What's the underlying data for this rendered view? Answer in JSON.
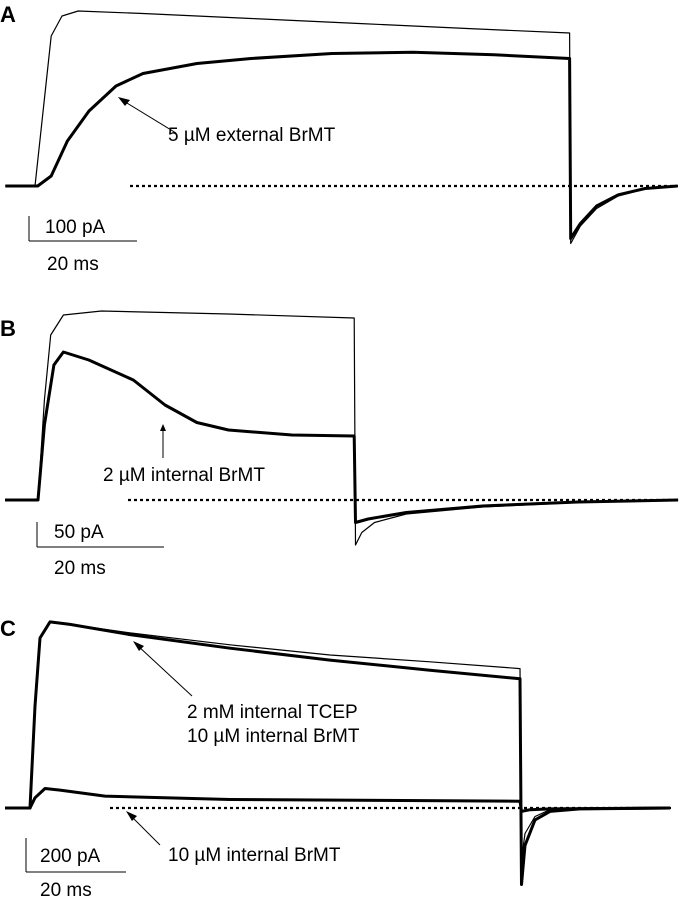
{
  "chart_data": [
    {
      "type": "line",
      "panel_label": "A",
      "x_unit": "ms",
      "y_unit": "pA",
      "scale_bar": {
        "y_label": "100 pA",
        "y_value": 100,
        "x_label": "20 ms",
        "x_value": 20
      },
      "annotations": [
        {
          "text": "5 µM external BrMT",
          "points_to": "thick"
        }
      ],
      "baseline": "dotted zero-current line",
      "series": [
        {
          "style": "thin",
          "points": [
            [
              -5.5,
              0
            ],
            [
              0,
              0
            ],
            [
              2,
              400
            ],
            [
              3,
              600
            ],
            [
              5,
              680
            ],
            [
              8,
              700
            ],
            [
              20,
              690
            ],
            [
              40,
              670
            ],
            [
              60,
              650
            ],
            [
              80,
              630
            ],
            [
              99,
              612
            ],
            [
              99.2,
              -230
            ],
            [
              101,
              -160
            ],
            [
              104,
              -90
            ],
            [
              108,
              -40
            ],
            [
              113,
              -12
            ],
            [
              119,
              0
            ]
          ]
        },
        {
          "style": "thick",
          "points": [
            [
              -5.5,
              0
            ],
            [
              0.5,
              0
            ],
            [
              3,
              40
            ],
            [
              6,
              180
            ],
            [
              10,
              300
            ],
            [
              15,
              400
            ],
            [
              20,
              450
            ],
            [
              30,
              490
            ],
            [
              40,
              510
            ],
            [
              55,
              530
            ],
            [
              70,
              535
            ],
            [
              85,
              525
            ],
            [
              99,
              510
            ],
            [
              99.2,
              -210
            ],
            [
              101,
              -150
            ],
            [
              104,
              -80
            ],
            [
              108,
              -35
            ],
            [
              113,
              -10
            ],
            [
              119,
              0
            ]
          ]
        }
      ]
    },
    {
      "type": "line",
      "panel_label": "B",
      "x_unit": "ms",
      "y_unit": "pA",
      "scale_bar": {
        "y_label": "50 pA",
        "y_value": 50,
        "x_label": "20 ms",
        "x_value": 20
      },
      "annotations": [
        {
          "text": "2 µM internal BrMT",
          "points_to": "thick"
        }
      ],
      "baseline": "dotted zero-current line",
      "series": [
        {
          "style": "thin",
          "points": [
            [
              -5.2,
              0
            ],
            [
              0,
              0
            ],
            [
              1,
              200
            ],
            [
              2,
              330
            ],
            [
              4,
              370
            ],
            [
              10,
              378
            ],
            [
              30,
              372
            ],
            [
              49.8,
              364
            ],
            [
              50,
              -90
            ],
            [
              51,
              -65
            ],
            [
              53,
              -45
            ],
            [
              58,
              -28
            ],
            [
              70,
              -14
            ],
            [
              85,
              -5
            ],
            [
              100.8,
              0
            ]
          ]
        },
        {
          "style": "thick",
          "points": [
            [
              -5.2,
              0
            ],
            [
              0,
              0
            ],
            [
              1,
              150
            ],
            [
              2.5,
              270
            ],
            [
              4,
              296
            ],
            [
              8,
              280
            ],
            [
              15,
              240
            ],
            [
              20,
              190
            ],
            [
              25,
              155
            ],
            [
              30,
              140
            ],
            [
              40,
              130
            ],
            [
              49.8,
              128
            ],
            [
              50,
              -45
            ],
            [
              52,
              -38
            ],
            [
              58,
              -25
            ],
            [
              70,
              -12
            ],
            [
              85,
              -4
            ],
            [
              100.8,
              0
            ]
          ]
        }
      ]
    },
    {
      "type": "line",
      "panel_label": "C",
      "x_unit": "ms",
      "y_unit": "pA",
      "scale_bar": {
        "y_label": "200 pA",
        "y_value": 200,
        "x_label": "20 ms",
        "x_value": 20
      },
      "annotations": [
        {
          "text": "2 mM internal TCEP",
          "text2": "10 µM internal BrMT",
          "points_to": "thick-upper"
        },
        {
          "text": "10 µM internal BrMT",
          "points_to": "thick-lower"
        }
      ],
      "baseline": "dotted zero-current line",
      "series": [
        {
          "style": "thin",
          "points": [
            [
              -5,
              0
            ],
            [
              0,
              0
            ],
            [
              1,
              600
            ],
            [
              2,
              1000
            ],
            [
              4,
              1090
            ],
            [
              8,
              1080
            ],
            [
              20,
              1030
            ],
            [
              40,
              960
            ],
            [
              60,
              900
            ],
            [
              80,
              860
            ],
            [
              98,
              820
            ],
            [
              98.3,
              -300
            ],
            [
              99,
              -150
            ],
            [
              101,
              -50
            ],
            [
              104,
              -10
            ],
            [
              110,
              0
            ],
            [
              128,
              0
            ]
          ]
        },
        {
          "style": "thick",
          "points": [
            [
              -5,
              0
            ],
            [
              0,
              0
            ],
            [
              1,
              600
            ],
            [
              2,
              1000
            ],
            [
              4,
              1095
            ],
            [
              8,
              1080
            ],
            [
              20,
              1020
            ],
            [
              40,
              940
            ],
            [
              60,
              870
            ],
            [
              80,
              810
            ],
            [
              98,
              760
            ],
            [
              98.3,
              -450
            ],
            [
              99,
              -220
            ],
            [
              101,
              -70
            ],
            [
              104,
              -20
            ],
            [
              110,
              -5
            ],
            [
              128,
              0
            ]
          ]
        },
        {
          "style": "thick",
          "points": [
            [
              -5,
              0
            ],
            [
              0,
              0
            ],
            [
              1,
              60
            ],
            [
              3,
              115
            ],
            [
              6,
              105
            ],
            [
              15,
              70
            ],
            [
              40,
              50
            ],
            [
              70,
              45
            ],
            [
              98,
              40
            ],
            [
              98.3,
              -20
            ],
            [
              100,
              -10
            ],
            [
              104,
              -5
            ],
            [
              128,
              0
            ]
          ]
        }
      ]
    }
  ]
}
